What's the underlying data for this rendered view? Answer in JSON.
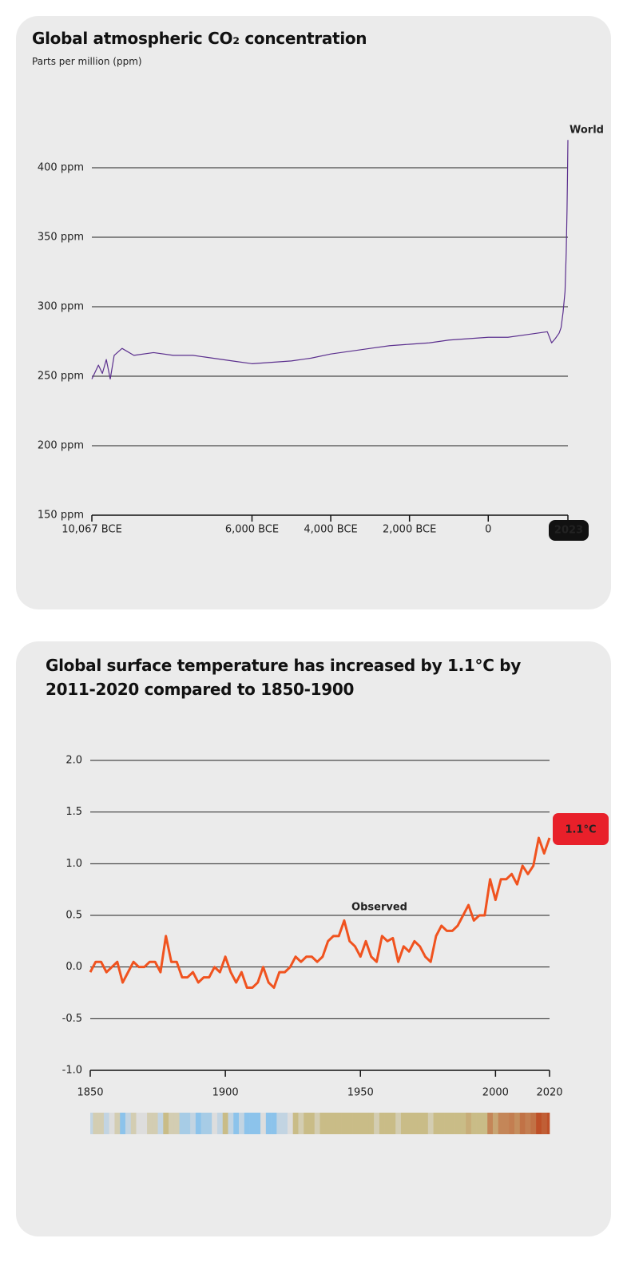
{
  "chart_data": [
    {
      "type": "line",
      "title": "Global atmospheric CO₂ concentration",
      "subtitle": "Parts per million (ppm)",
      "x": [
        -10067,
        -9900,
        -9800,
        -9700,
        -9600,
        -9500,
        -9300,
        -9000,
        -8500,
        -8000,
        -7500,
        -7000,
        -6500,
        -6000,
        -5500,
        -5000,
        -4500,
        -4000,
        -3500,
        -3000,
        -2500,
        -2000,
        -1500,
        -1000,
        -500,
        0,
        500,
        1000,
        1500,
        1610,
        1700,
        1800,
        1850,
        1900,
        1950,
        1980,
        2000,
        2010,
        2023
      ],
      "series": [
        {
          "name": "World",
          "color": "#5b2f8e",
          "values": [
            248,
            258,
            252,
            262,
            248,
            265,
            270,
            265,
            267,
            265,
            265,
            263,
            261,
            259,
            260,
            261,
            263,
            266,
            268,
            270,
            272,
            273,
            274,
            276,
            277,
            278,
            278,
            280,
            282,
            274,
            277,
            281,
            285,
            296,
            311,
            339,
            369,
            389,
            420
          ]
        }
      ],
      "xlim": [
        -10067,
        2023
      ],
      "xticks": [
        {
          "value": -10067,
          "label": "10,067 BCE"
        },
        {
          "value": -6000,
          "label": "6,000 BCE"
        },
        {
          "value": -4000,
          "label": "4,000 BCE"
        },
        {
          "value": -2000,
          "label": "2,000 BCE"
        },
        0,
        2023
      ],
      "ylim": [
        150,
        425
      ],
      "yticks": [
        {
          "value": 150,
          "label": "150 ppm"
        },
        {
          "value": 200,
          "label": "200 ppm"
        },
        {
          "value": 250,
          "label": "250 ppm"
        },
        {
          "value": 300,
          "label": "300 ppm"
        },
        {
          "value": 350,
          "label": "350 ppm"
        },
        {
          "value": 400,
          "label": "400 ppm"
        }
      ],
      "grid": true
    },
    {
      "type": "line",
      "title": "Global surface temperature has increased by 1.1°C by 2011-2020 compared to 1850-1900",
      "x": [
        1850,
        1852,
        1854,
        1856,
        1858,
        1860,
        1862,
        1864,
        1866,
        1868,
        1870,
        1872,
        1874,
        1876,
        1878,
        1880,
        1882,
        1884,
        1886,
        1888,
        1890,
        1892,
        1894,
        1896,
        1898,
        1900,
        1902,
        1904,
        1906,
        1908,
        1910,
        1912,
        1914,
        1916,
        1918,
        1920,
        1922,
        1924,
        1926,
        1928,
        1930,
        1932,
        1934,
        1936,
        1938,
        1940,
        1942,
        1944,
        1946,
        1948,
        1950,
        1952,
        1954,
        1956,
        1958,
        1960,
        1962,
        1964,
        1966,
        1968,
        1970,
        1972,
        1974,
        1976,
        1978,
        1980,
        1982,
        1984,
        1986,
        1988,
        1990,
        1992,
        1994,
        1996,
        1998,
        2000,
        2002,
        2004,
        2006,
        2008,
        2010,
        2012,
        2014,
        2016,
        2018,
        2020
      ],
      "series": [
        {
          "name": "Observed",
          "color": "#f0531f",
          "values": [
            -0.05,
            0.05,
            0.05,
            -0.05,
            0.0,
            0.05,
            -0.15,
            -0.05,
            0.05,
            0.0,
            0.0,
            0.05,
            0.05,
            -0.05,
            0.3,
            0.05,
            0.05,
            -0.1,
            -0.1,
            -0.05,
            -0.15,
            -0.1,
            -0.1,
            0.0,
            -0.05,
            0.1,
            -0.05,
            -0.15,
            -0.05,
            -0.2,
            -0.2,
            -0.15,
            0.0,
            -0.15,
            -0.2,
            -0.05,
            -0.05,
            0.0,
            0.1,
            0.05,
            0.1,
            0.1,
            0.05,
            0.1,
            0.25,
            0.3,
            0.3,
            0.45,
            0.25,
            0.2,
            0.1,
            0.25,
            0.1,
            0.05,
            0.3,
            0.25,
            0.28,
            0.05,
            0.2,
            0.15,
            0.25,
            0.2,
            0.1,
            0.05,
            0.3,
            0.4,
            0.35,
            0.35,
            0.4,
            0.5,
            0.6,
            0.45,
            0.5,
            0.5,
            0.85,
            0.65,
            0.85,
            0.85,
            0.9,
            0.8,
            0.98,
            0.9,
            0.98,
            1.25,
            1.1,
            1.25
          ]
        }
      ],
      "annotations": [
        "1.1°C"
      ],
      "xlim": [
        1850,
        2020
      ],
      "xticks": [
        1850,
        1900,
        1950,
        2000,
        2020
      ],
      "ylim": [
        -1,
        2
      ],
      "yticks": [
        {
          "value": -1,
          "label": "-1.0"
        },
        -0.5,
        {
          "value": 0,
          "label": "0.0"
        },
        0.5,
        {
          "value": 1,
          "label": "1.0"
        },
        1.5,
        {
          "value": 2,
          "label": "2.0"
        }
      ],
      "grid": true,
      "stripes": true
    }
  ]
}
